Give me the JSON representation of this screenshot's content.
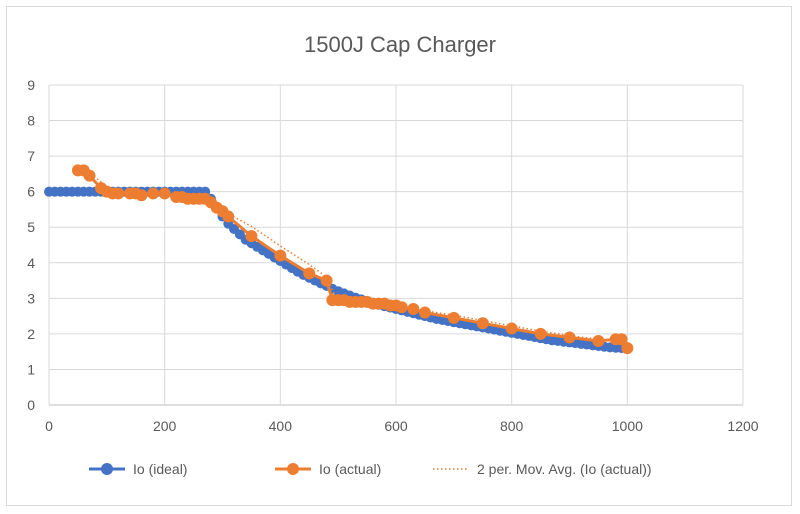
{
  "chart_data": {
    "type": "scatter",
    "title": "1500J Cap Charger",
    "xlabel": "",
    "ylabel": "",
    "xlim": [
      0,
      1200
    ],
    "ylim": [
      0,
      9
    ],
    "xticks": [
      0,
      200,
      400,
      600,
      800,
      1000,
      1200
    ],
    "yticks": [
      0,
      1,
      2,
      3,
      4,
      5,
      6,
      7,
      8,
      9
    ],
    "grid": true,
    "legend_position": "bottom",
    "series": [
      {
        "name": "Io (ideal)",
        "color": "#4472C4",
        "style": "line-markers",
        "x": [
          0,
          10,
          20,
          30,
          40,
          50,
          60,
          70,
          80,
          90,
          100,
          110,
          120,
          130,
          140,
          150,
          160,
          170,
          180,
          190,
          200,
          210,
          220,
          230,
          240,
          250,
          260,
          270,
          280,
          290,
          300,
          310,
          320,
          330,
          340,
          350,
          360,
          370,
          380,
          390,
          400,
          410,
          420,
          430,
          440,
          450,
          460,
          470,
          480,
          490,
          500,
          510,
          520,
          530,
          540,
          550,
          560,
          570,
          580,
          590,
          600,
          610,
          620,
          630,
          640,
          650,
          660,
          670,
          680,
          690,
          700,
          710,
          720,
          730,
          740,
          750,
          760,
          770,
          780,
          790,
          800,
          810,
          820,
          830,
          840,
          850,
          860,
          870,
          880,
          890,
          900,
          910,
          920,
          930,
          940,
          950,
          960,
          970,
          980,
          990,
          1000
        ],
        "y": [
          6.0,
          6.0,
          6.0,
          6.0,
          6.0,
          6.0,
          6.0,
          6.0,
          6.0,
          6.0,
          6.0,
          6.0,
          6.0,
          6.0,
          6.0,
          6.0,
          6.0,
          6.0,
          6.0,
          6.0,
          6.0,
          6.0,
          6.0,
          6.0,
          6.0,
          6.0,
          6.0,
          6.0,
          5.8,
          5.55,
          5.3,
          5.1,
          4.95,
          4.8,
          4.65,
          4.55,
          4.45,
          4.35,
          4.25,
          4.15,
          4.05,
          3.95,
          3.85,
          3.75,
          3.66,
          3.58,
          3.5,
          3.42,
          3.35,
          3.27,
          3.2,
          3.14,
          3.08,
          3.02,
          2.97,
          2.92,
          2.87,
          2.82,
          2.78,
          2.74,
          2.7,
          2.66,
          2.62,
          2.58,
          2.54,
          2.5,
          2.46,
          2.42,
          2.39,
          2.36,
          2.33,
          2.3,
          2.27,
          2.24,
          2.21,
          2.18,
          2.15,
          2.12,
          2.09,
          2.06,
          2.03,
          2.0,
          1.97,
          1.94,
          1.91,
          1.88,
          1.85,
          1.82,
          1.8,
          1.78,
          1.76,
          1.74,
          1.72,
          1.7,
          1.68,
          1.66,
          1.64,
          1.62,
          1.61,
          1.6,
          1.6
        ]
      },
      {
        "name": "Io (actual)",
        "color": "#ED7D31",
        "style": "line-markers",
        "x": [
          50,
          60,
          70,
          90,
          100,
          110,
          120,
          140,
          150,
          160,
          180,
          200,
          220,
          230,
          240,
          250,
          260,
          270,
          280,
          290,
          300,
          310,
          350,
          400,
          450,
          480,
          490,
          500,
          510,
          520,
          530,
          540,
          550,
          560,
          570,
          580,
          590,
          600,
          610,
          630,
          650,
          700,
          750,
          800,
          850,
          900,
          950,
          980,
          990,
          1000
        ],
        "y": [
          6.6,
          6.6,
          6.45,
          6.1,
          6.0,
          5.95,
          5.95,
          5.95,
          5.95,
          5.9,
          5.95,
          5.95,
          5.85,
          5.85,
          5.8,
          5.8,
          5.8,
          5.8,
          5.7,
          5.55,
          5.45,
          5.3,
          4.75,
          4.2,
          3.7,
          3.5,
          2.95,
          2.95,
          2.95,
          2.9,
          2.9,
          2.9,
          2.9,
          2.85,
          2.85,
          2.85,
          2.8,
          2.8,
          2.75,
          2.7,
          2.6,
          2.45,
          2.3,
          2.15,
          2.0,
          1.9,
          1.8,
          1.85,
          1.85,
          1.6
        ]
      },
      {
        "name": "2 per. Mov. Avg. (Io (actual))",
        "color": "#ED7D31",
        "style": "dotted-trendline"
      }
    ]
  }
}
